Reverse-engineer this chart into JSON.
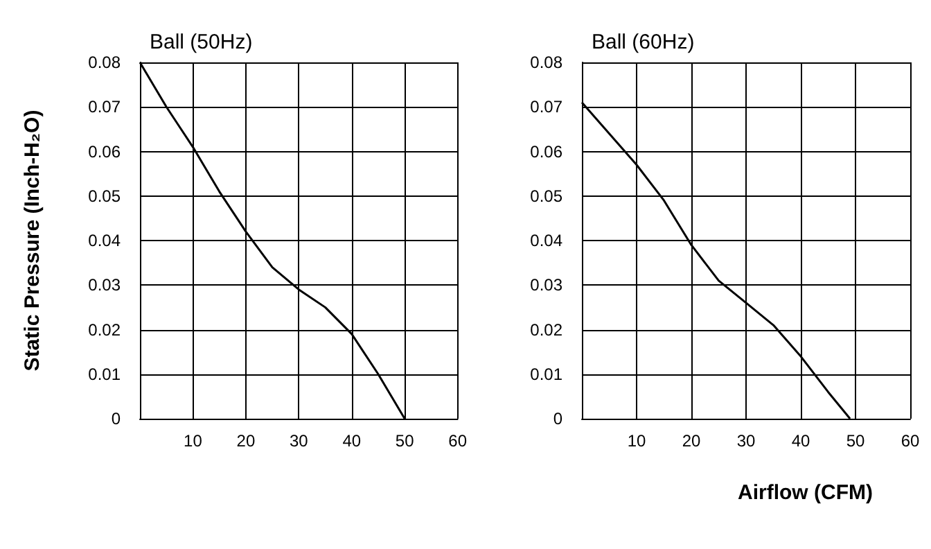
{
  "chart_data": [
    {
      "type": "line",
      "title": "Ball (50Hz)",
      "ylabel": "Static Pressure (Inch-H₂O)",
      "x": [
        0,
        5,
        10,
        15,
        20,
        25,
        30,
        35,
        40,
        45,
        50
      ],
      "series": [
        {
          "color": "#000000",
          "values": [
            0.08,
            0.07,
            0.061,
            0.051,
            0.042,
            0.034,
            0.029,
            0.025,
            0.019,
            0.01,
            0
          ]
        }
      ],
      "xlim": [
        0,
        60
      ],
      "xticks": [
        10,
        20,
        30,
        40,
        50,
        60
      ],
      "ylim": [
        0,
        0.08
      ],
      "yticks": [
        0,
        0.01,
        0.02,
        0.03,
        0.04,
        0.05,
        0.06,
        0.07,
        0.08
      ],
      "grid": true,
      "marker": "none",
      "line_style": "solid"
    },
    {
      "type": "line",
      "title": "Ball (60Hz)",
      "xlabel": "Airflow (CFM)",
      "x": [
        0,
        5,
        10,
        15,
        20,
        25,
        30,
        35,
        40,
        45,
        49
      ],
      "series": [
        {
          "color": "#000000",
          "values": [
            0.071,
            0.064,
            0.057,
            0.049,
            0.039,
            0.031,
            0.026,
            0.021,
            0.014,
            0.006,
            0
          ]
        }
      ],
      "xlim": [
        0,
        60
      ],
      "xticks": [
        10,
        20,
        30,
        40,
        50,
        60
      ],
      "ylim": [
        0,
        0.08
      ],
      "yticks": [
        0,
        0.01,
        0.02,
        0.03,
        0.04,
        0.05,
        0.06,
        0.07,
        0.08
      ],
      "grid": true,
      "marker": "none",
      "line_style": "solid"
    }
  ]
}
